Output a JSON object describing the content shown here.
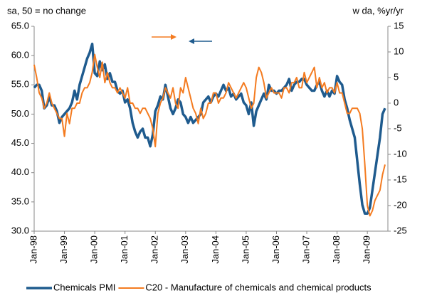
{
  "chart_data": {
    "type": "line",
    "annotations": [
      "sa, 50 = no change",
      "w da, %yr/yr"
    ],
    "categories": [
      "Jan-98",
      null,
      null,
      null,
      null,
      null,
      null,
      null,
      null,
      null,
      null,
      null,
      "Jan-99",
      null,
      null,
      null,
      null,
      null,
      null,
      null,
      null,
      null,
      null,
      null,
      "Jan-00",
      null,
      null,
      null,
      null,
      null,
      null,
      null,
      null,
      null,
      null,
      null,
      "Jan-01",
      null,
      null,
      null,
      null,
      null,
      null,
      null,
      null,
      null,
      null,
      null,
      "Jan-02",
      null,
      null,
      null,
      null,
      null,
      null,
      null,
      null,
      null,
      null,
      null,
      "Jan-03",
      null,
      null,
      null,
      null,
      null,
      null,
      null,
      null,
      null,
      null,
      null,
      "Jan-04",
      null,
      null,
      null,
      null,
      null,
      null,
      null,
      null,
      null,
      null,
      null,
      "Jan-05",
      null,
      null,
      null,
      null,
      null,
      null,
      null,
      null,
      null,
      null,
      null,
      "Jan-06",
      null,
      null,
      null,
      null,
      null,
      null,
      null,
      null,
      null,
      null,
      null,
      "Jan-07",
      null,
      null,
      null,
      null,
      null,
      null,
      null,
      null,
      null,
      null,
      null,
      "Jan-08",
      null,
      null,
      null,
      null,
      null,
      null,
      null,
      null,
      null,
      null,
      null,
      "Jan-09",
      null,
      null,
      null,
      null,
      null,
      null,
      null
    ],
    "series": [
      {
        "name": "Chemicals PMI",
        "color": "#1f5b8e",
        "axis": "y",
        "values": [
          54.5,
          55,
          55,
          54,
          51,
          51.5,
          53,
          51.5,
          51.5,
          50.5,
          48.5,
          49.5,
          50,
          50.5,
          51,
          52,
          54,
          52.5,
          55,
          56.5,
          58,
          59.5,
          60.5,
          62,
          57,
          56.5,
          59,
          57.5,
          58.5,
          56,
          57,
          55.5,
          55.5,
          54,
          53.5,
          54,
          52,
          52.5,
          51,
          48.5,
          47,
          46,
          47,
          47.5,
          46,
          46,
          44.5,
          46.5,
          50.5,
          51.5,
          53,
          52.5,
          55,
          53,
          51,
          50,
          51,
          52.5,
          52,
          50,
          49.5,
          48.5,
          49.5,
          48.5,
          49,
          49.5,
          50,
          52,
          52.5,
          53,
          52,
          53,
          53.5,
          53,
          54,
          55,
          54,
          54.5,
          53,
          53.5,
          52.5,
          53,
          53.5,
          52,
          51.5,
          50,
          52,
          48,
          50.5,
          51.5,
          52.5,
          53.5,
          52.5,
          55,
          54,
          54,
          53.5,
          54,
          54,
          54.5,
          55,
          56,
          54,
          55,
          55.5,
          55.5,
          56,
          56,
          55,
          54.5,
          54,
          54,
          55,
          55.5,
          54,
          53,
          54,
          53,
          54,
          53.5,
          56.5,
          55.5,
          55,
          52.5,
          51,
          49,
          47.5,
          46,
          42,
          38,
          34.5,
          33,
          33,
          34,
          37,
          40,
          43,
          46,
          50,
          51
        ]
      },
      {
        "name": "C20 - Manufacture of chemicals and chemical products",
        "color": "#f47b20",
        "axis": "y2",
        "values": [
          7.5,
          5,
          2,
          1,
          -1,
          0,
          2,
          0,
          -1,
          -2,
          -3,
          -3,
          -6.5,
          -2,
          -4,
          -1,
          -1,
          0,
          0,
          2,
          3,
          3,
          4,
          6,
          9.5,
          7,
          5,
          8,
          4,
          6,
          4,
          3,
          3,
          2,
          3,
          2,
          1,
          3,
          0,
          0,
          -1,
          -1,
          -2,
          -1,
          -1,
          -2,
          -3,
          -5,
          -8.5,
          -2,
          0,
          1,
          3,
          2,
          1,
          3,
          0,
          -1,
          3,
          2,
          5,
          3,
          1,
          -1,
          -2,
          -4,
          -1,
          -3,
          -2,
          0,
          0,
          2,
          2,
          0,
          1,
          1,
          2,
          4,
          3,
          2,
          1,
          2,
          3,
          4,
          3,
          1,
          -1,
          0,
          5,
          7,
          6,
          4,
          1,
          2,
          3,
          2,
          2,
          2,
          1,
          3,
          3,
          2,
          4,
          4,
          5,
          3,
          3,
          6,
          4,
          5,
          6,
          7,
          3,
          5,
          3,
          4,
          2,
          3,
          3,
          2,
          4,
          2,
          2,
          0,
          -2,
          -2,
          -1,
          -1,
          -1,
          -2,
          -5,
          -12,
          -20,
          -22,
          -21,
          -19,
          -18,
          -17,
          -14,
          -12
        ]
      }
    ],
    "ylim": [
      30,
      65
    ],
    "yticks": [
      {
        "value": 30,
        "label": "30.0"
      },
      {
        "value": 35,
        "label": "35.0"
      },
      {
        "value": 40,
        "label": "40.0"
      },
      {
        "value": 45,
        "label": "45.0"
      },
      {
        "value": 50,
        "label": "50.0"
      },
      {
        "value": 55,
        "label": "55.0"
      },
      {
        "value": 60,
        "label": "60.0"
      },
      {
        "value": 65,
        "label": "65.0"
      }
    ],
    "y2lim": [
      -25,
      15
    ],
    "y2ticks": [
      -25,
      -20,
      -15,
      -10,
      -5,
      0,
      5,
      10,
      15
    ],
    "legend": "bottom"
  }
}
